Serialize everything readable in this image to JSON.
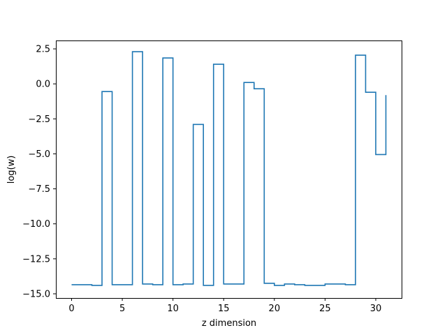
{
  "chart_data": {
    "type": "line",
    "step": "post",
    "title": "",
    "xlabel": "z dimension",
    "ylabel": "log(w)",
    "xlim": [
      -1.55,
      32.55
    ],
    "ylim": [
      -15.3,
      3.1
    ],
    "xticks": [
      0,
      5,
      10,
      15,
      20,
      25,
      30
    ],
    "xtick_labels": [
      "0",
      "5",
      "10",
      "15",
      "20",
      "25",
      "30"
    ],
    "yticks": [
      2.5,
      0.0,
      -2.5,
      -5.0,
      -7.5,
      -10.0,
      -12.5,
      -15.0
    ],
    "ytick_labels": [
      "2.5",
      "0.0",
      "−2.5",
      "−5.0",
      "−7.5",
      "−10.0",
      "−12.5",
      "−15.0"
    ],
    "grid": false,
    "color": "#1f77b4",
    "series": [
      {
        "x": [
          0,
          1,
          2,
          3,
          4,
          5,
          6,
          7,
          8,
          9,
          10,
          11,
          12,
          13,
          14,
          15,
          16,
          17,
          18,
          19,
          20,
          21,
          22,
          23,
          24,
          25,
          26,
          27,
          28,
          29,
          30,
          31
        ],
        "values": [
          -14.35,
          -14.35,
          -14.4,
          -0.55,
          -14.35,
          -14.35,
          2.3,
          -14.3,
          -14.35,
          1.85,
          -14.35,
          -14.3,
          -2.9,
          -14.4,
          1.4,
          -14.3,
          -14.3,
          0.1,
          -0.35,
          -14.25,
          -14.4,
          -14.3,
          -14.35,
          -14.4,
          -14.4,
          -14.3,
          -14.3,
          -14.35,
          2.05,
          -0.6,
          -5.05,
          -0.8
        ]
      }
    ]
  }
}
